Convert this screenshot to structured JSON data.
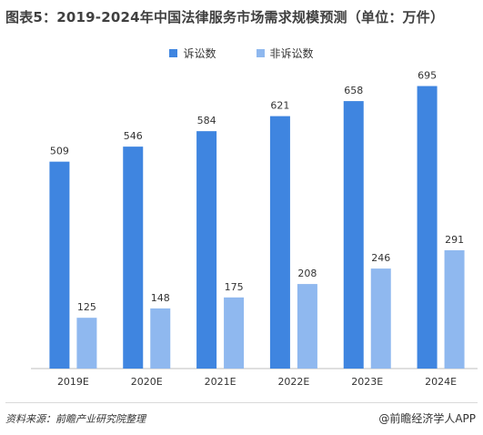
{
  "title": "图表5：2019-2024年中国法律服务市场需求规模预测（单位：万件）",
  "footer": {
    "source": "资料来源：前瞻产业研究院整理",
    "brand": "@前瞻经济学人APP"
  },
  "colors": {
    "litigation": "#3f85e0",
    "non_litigation": "#8fb8ef",
    "axis": "#bfbfbf",
    "label": "#333333"
  },
  "chart_data": {
    "type": "bar",
    "title": "图表5：2019-2024年中国法律服务市场需求规模预测（单位：万件）",
    "categories": [
      "2019E",
      "2020E",
      "2021E",
      "2022E",
      "2023E",
      "2024E"
    ],
    "series": [
      {
        "name": "诉讼数",
        "values": [
          509,
          546,
          584,
          621,
          658,
          695
        ]
      },
      {
        "name": "非诉讼数",
        "values": [
          125,
          148,
          175,
          208,
          246,
          291
        ]
      }
    ],
    "ylim": [
      0,
      750
    ],
    "legend": "top-center",
    "grid": false,
    "xlabel": "",
    "ylabel": ""
  }
}
